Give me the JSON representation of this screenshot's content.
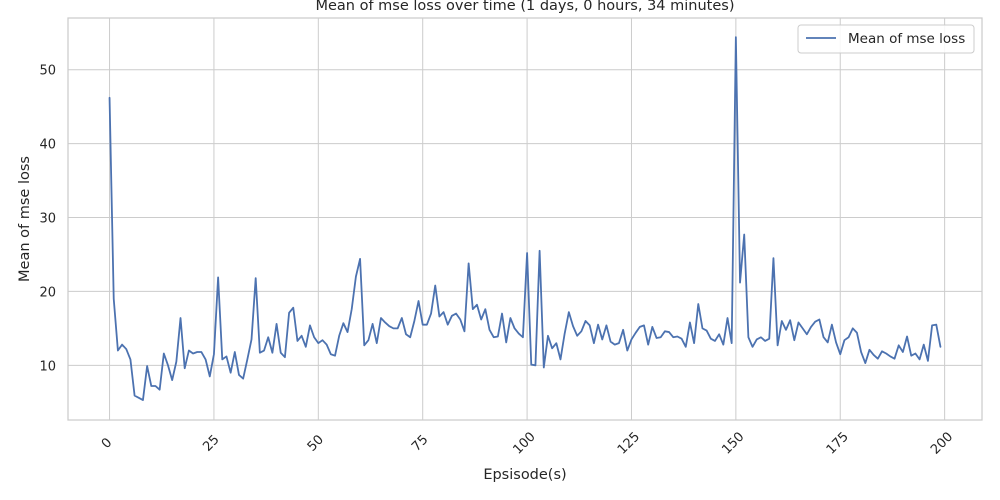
{
  "chart_data": {
    "type": "line",
    "title": "Mean of mse loss over time (1 days, 0 hours, 34 minutes)",
    "xlabel": "Epsisode(s)",
    "ylabel": "Mean of mse loss",
    "xlim": [
      -9.95,
      208.95
    ],
    "ylim": [
      2.6,
      57.0
    ],
    "xticks": [
      0,
      25,
      50,
      75,
      100,
      125,
      150,
      175,
      200
    ],
    "yticks": [
      10,
      20,
      30,
      40,
      50
    ],
    "grid": true,
    "legend_position": "top-right",
    "series": [
      {
        "name": "Mean of mse loss",
        "color": "#4c72b0",
        "x": [
          0,
          1,
          2,
          3,
          4,
          5,
          6,
          7,
          8,
          9,
          10,
          11,
          12,
          13,
          14,
          15,
          16,
          17,
          18,
          19,
          20,
          21,
          22,
          23,
          24,
          25,
          26,
          27,
          28,
          29,
          30,
          31,
          32,
          33,
          34,
          35,
          36,
          37,
          38,
          39,
          40,
          41,
          42,
          43,
          44,
          45,
          46,
          47,
          48,
          49,
          50,
          51,
          52,
          53,
          54,
          55,
          56,
          57,
          58,
          59,
          60,
          61,
          62,
          63,
          64,
          65,
          66,
          67,
          68,
          69,
          70,
          71,
          72,
          73,
          74,
          75,
          76,
          77,
          78,
          79,
          80,
          81,
          82,
          83,
          84,
          85,
          86,
          87,
          88,
          89,
          90,
          91,
          92,
          93,
          94,
          95,
          96,
          97,
          98,
          99,
          100,
          101,
          102,
          103,
          104,
          105,
          106,
          107,
          108,
          109,
          110,
          111,
          112,
          113,
          114,
          115,
          116,
          117,
          118,
          119,
          120,
          121,
          122,
          123,
          124,
          125,
          126,
          127,
          128,
          129,
          130,
          131,
          132,
          133,
          134,
          135,
          136,
          137,
          138,
          139,
          140,
          141,
          142,
          143,
          144,
          145,
          146,
          147,
          148,
          149,
          150,
          151,
          152,
          153,
          154,
          155,
          156,
          157,
          158,
          159,
          160,
          161,
          162,
          163,
          164,
          165,
          166,
          167,
          168,
          169,
          170,
          171,
          172,
          173,
          174,
          175,
          176,
          177,
          178,
          179,
          180,
          181,
          182,
          183,
          184,
          185,
          186,
          187,
          188,
          189,
          190,
          191,
          192,
          193,
          194,
          195,
          196,
          197,
          198,
          199
        ],
        "values": [
          46.2,
          19.0,
          12.0,
          12.8,
          12.2,
          10.8,
          5.9,
          5.6,
          5.3,
          9.9,
          7.2,
          7.2,
          6.7,
          11.6,
          10.0,
          8.0,
          10.5,
          16.4,
          9.6,
          12.0,
          11.6,
          11.8,
          11.8,
          10.8,
          8.5,
          11.5,
          21.9,
          10.8,
          11.2,
          9.0,
          11.8,
          8.7,
          8.2,
          10.8,
          13.5,
          21.8,
          11.7,
          12.0,
          13.8,
          11.7,
          15.6,
          11.7,
          11.1,
          17.1,
          17.8,
          13.3,
          14.0,
          12.5,
          15.4,
          13.8,
          13.0,
          13.4,
          12.8,
          11.5,
          11.3,
          14.0,
          15.7,
          14.5,
          17.6,
          22.0,
          24.4,
          12.7,
          13.4,
          15.6,
          13.0,
          16.4,
          15.8,
          15.3,
          15.0,
          15.0,
          16.4,
          14.2,
          13.8,
          16.0,
          18.7,
          15.5,
          15.5,
          17.0,
          20.8,
          16.6,
          17.2,
          15.5,
          16.7,
          17.0,
          16.2,
          14.6,
          23.8,
          17.6,
          18.2,
          16.2,
          17.6,
          14.8,
          13.8,
          13.9,
          17.0,
          13.1,
          16.4,
          15.0,
          14.3,
          13.8,
          25.2,
          10.1,
          10.0,
          25.5,
          9.7,
          14.0,
          12.3,
          13.0,
          10.8,
          14.3,
          17.2,
          15.3,
          14.0,
          14.6,
          16.0,
          15.4,
          13.0,
          15.5,
          13.5,
          15.4,
          13.2,
          12.8,
          13.0,
          14.8,
          12.0,
          13.5,
          14.4,
          15.2,
          15.4,
          12.8,
          15.2,
          13.7,
          13.8,
          14.6,
          14.5,
          13.8,
          13.9,
          13.6,
          12.5,
          15.8,
          13.0,
          18.3,
          15.0,
          14.7,
          13.6,
          13.3,
          14.2,
          12.8,
          16.4,
          13.0,
          54.4,
          21.2,
          27.7,
          13.8,
          12.5,
          13.5,
          13.8,
          13.3,
          13.6,
          24.5,
          12.7,
          16.0,
          14.8,
          16.1,
          13.4,
          15.8,
          15.0,
          14.2,
          15.2,
          15.9,
          16.2,
          13.8,
          13.1,
          15.5,
          13.1,
          11.5,
          13.4,
          13.8,
          15.0,
          14.4,
          11.8,
          10.3,
          12.1,
          11.4,
          10.9,
          11.9,
          11.6,
          11.2,
          10.9,
          12.7,
          11.8,
          13.9,
          11.3,
          11.6,
          10.8,
          12.8,
          10.6,
          15.4,
          15.5,
          12.5
        ]
      }
    ]
  }
}
